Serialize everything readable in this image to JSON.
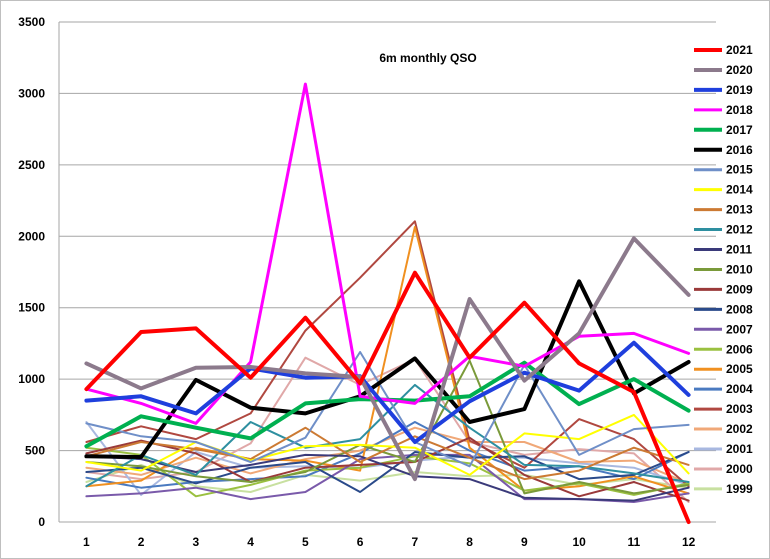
{
  "chart_data": {
    "type": "line",
    "title": "6m monthly QSO",
    "xlabel": "",
    "ylabel": "",
    "x": [
      1,
      2,
      3,
      4,
      5,
      6,
      7,
      8,
      9,
      10,
      11,
      12
    ],
    "ylim": [
      0,
      3500
    ],
    "yticks": [
      0,
      500,
      1000,
      1500,
      2000,
      2500,
      3000,
      3500
    ],
    "grid": "horizontal",
    "legend_position": "right",
    "series": [
      {
        "name": "2021",
        "color": "#ff0000",
        "width": 4,
        "values": [
          930,
          1330,
          1355,
          1010,
          1430,
          970,
          1745,
          1150,
          1535,
          1110,
          910,
          0
        ]
      },
      {
        "name": "2020",
        "color": "#8c7a8c",
        "width": 4,
        "values": [
          1110,
          935,
          1080,
          1085,
          1040,
          1015,
          300,
          1560,
          990,
          1320,
          1985,
          1590
        ]
      },
      {
        "name": "2019",
        "color": "#1f3fdd",
        "width": 4,
        "values": [
          850,
          880,
          760,
          1075,
          1010,
          1020,
          560,
          845,
          1045,
          920,
          1255,
          890
        ]
      },
      {
        "name": "2018",
        "color": "#ff00ff",
        "width": 3,
        "values": [
          930,
          830,
          690,
          1120,
          3065,
          880,
          830,
          1160,
          1090,
          1300,
          1320,
          1180
        ]
      },
      {
        "name": "2017",
        "color": "#00b050",
        "width": 4,
        "values": [
          530,
          740,
          660,
          585,
          830,
          860,
          850,
          880,
          1115,
          825,
          1000,
          780
        ]
      },
      {
        "name": "2016",
        "color": "#000000",
        "width": 4,
        "values": [
          460,
          455,
          995,
          800,
          760,
          880,
          1145,
          700,
          790,
          1685,
          900,
          1120
        ]
      },
      {
        "name": "2015",
        "color": "#6f8fc8",
        "width": 2,
        "values": [
          690,
          600,
          560,
          420,
          590,
          1190,
          560,
          390,
          1100,
          470,
          650,
          680
        ]
      },
      {
        "name": "2014",
        "color": "#ffff00",
        "width": 2,
        "values": [
          420,
          360,
          560,
          430,
          530,
          540,
          520,
          330,
          620,
          580,
          750,
          340
        ]
      },
      {
        "name": "2013",
        "color": "#cc7a33",
        "width": 2,
        "values": [
          460,
          560,
          510,
          440,
          660,
          420,
          600,
          450,
          300,
          360,
          520,
          400
        ]
      },
      {
        "name": "2012",
        "color": "#2e8fa0",
        "width": 2,
        "values": [
          250,
          470,
          330,
          700,
          520,
          580,
          960,
          660,
          400,
          390,
          340,
          280
        ]
      },
      {
        "name": "2011",
        "color": "#3a3a7a",
        "width": 2,
        "values": [
          460,
          440,
          350,
          400,
          470,
          460,
          320,
          300,
          170,
          160,
          150,
          240
        ]
      },
      {
        "name": "2010",
        "color": "#7a9a3a",
        "width": 2,
        "values": [
          420,
          390,
          320,
          280,
          350,
          540,
          420,
          1130,
          200,
          280,
          200,
          260
        ]
      },
      {
        "name": "2009",
        "color": "#9a3a3a",
        "width": 2,
        "values": [
          480,
          570,
          480,
          280,
          380,
          400,
          420,
          590,
          330,
          180,
          280,
          150
        ]
      },
      {
        "name": "2008",
        "color": "#2a4a8a",
        "width": 2,
        "values": [
          350,
          380,
          270,
          380,
          420,
          210,
          490,
          450,
          460,
          300,
          330,
          490
        ]
      },
      {
        "name": "2007",
        "color": "#7a5aaa",
        "width": 2,
        "values": [
          180,
          200,
          240,
          160,
          210,
          440,
          470,
          470,
          160,
          160,
          140,
          200
        ]
      },
      {
        "name": "2006",
        "color": "#9ac040",
        "width": 2,
        "values": [
          520,
          470,
          180,
          260,
          360,
          380,
          460,
          410,
          220,
          270,
          190,
          270
        ]
      },
      {
        "name": "2005",
        "color": "#f09020",
        "width": 2,
        "values": [
          250,
          290,
          520,
          440,
          430,
          360,
          2065,
          520,
          220,
          250,
          320,
          200
        ]
      },
      {
        "name": "2004",
        "color": "#4a7ac0",
        "width": 2,
        "values": [
          310,
          240,
          280,
          300,
          320,
          480,
          700,
          500,
          360,
          390,
          300,
          490
        ]
      },
      {
        "name": "2003",
        "color": "#b04840",
        "width": 2,
        "values": [
          560,
          670,
          580,
          760,
          1340,
          1710,
          2105,
          570,
          380,
          720,
          580,
          250
        ]
      },
      {
        "name": "2002",
        "color": "#f0a878",
        "width": 2,
        "values": [
          380,
          330,
          450,
          340,
          440,
          500,
          660,
          560,
          560,
          420,
          430,
          270
        ]
      },
      {
        "name": "2001",
        "color": "#a8b8e0",
        "width": 2,
        "values": [
          700,
          190,
          490,
          380,
          390,
          380,
          430,
          460,
          450,
          410,
          380,
          260
        ]
      },
      {
        "name": "2000",
        "color": "#e0a8a8",
        "width": 2,
        "values": [
          350,
          300,
          350,
          550,
          1150,
          960,
          1140,
          560,
          470,
          510,
          480,
          140
        ]
      },
      {
        "name": "1999",
        "color": "#c8e0a0",
        "width": 2,
        "values": [
          280,
          400,
          250,
          210,
          330,
          290,
          350,
          320,
          330,
          260,
          300,
          240
        ]
      }
    ]
  }
}
